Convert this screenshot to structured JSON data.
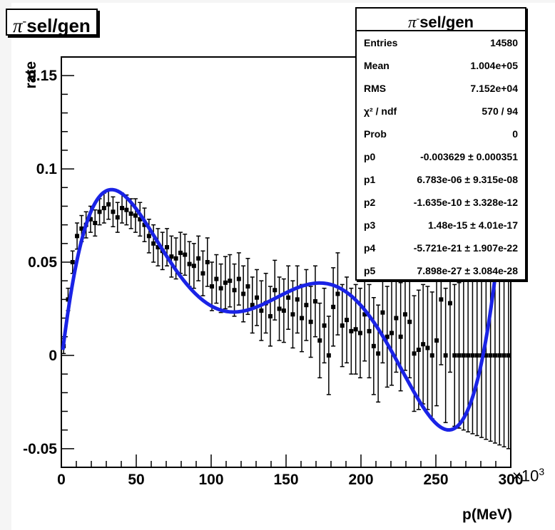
{
  "chart_data": {
    "type": "scatter",
    "title": "π⁻sel/gen",
    "title_parts": {
      "symbol": "π",
      "charge": "-",
      "rest": "sel/gen"
    },
    "xlabel": "p(MeV)",
    "ylabel": "rate",
    "x_exponent_base": "×10",
    "x_exponent_power": "3",
    "xlim": [
      0,
      300
    ],
    "ylim": [
      -0.06,
      0.16
    ],
    "x_ticks": [
      "0",
      "50",
      "100",
      "150",
      "200",
      "250",
      "300"
    ],
    "y_ticks": [
      "-0.05",
      "0",
      "0.05",
      "0.1",
      "0.15"
    ],
    "y_tick_values": [
      -0.05,
      0,
      0.05,
      0.1,
      0.15
    ],
    "x_tick_values": [
      0,
      50,
      100,
      150,
      200,
      250,
      300
    ],
    "grid": false,
    "series": [
      {
        "kind": "data-with-errors",
        "color": "#000000",
        "points": [
          [
            1.5,
            0.005,
            0.004
          ],
          [
            4.5,
            0.03,
            0.006
          ],
          [
            7.5,
            0.05,
            0.006
          ],
          [
            10.5,
            0.064,
            0.007
          ],
          [
            13.5,
            0.068,
            0.007
          ],
          [
            16.5,
            0.07,
            0.007
          ],
          [
            19.5,
            0.073,
            0.007
          ],
          [
            22.5,
            0.071,
            0.007
          ],
          [
            25.5,
            0.077,
            0.007
          ],
          [
            28.5,
            0.079,
            0.008
          ],
          [
            31.5,
            0.081,
            0.008
          ],
          [
            34.5,
            0.077,
            0.008
          ],
          [
            37.5,
            0.074,
            0.008
          ],
          [
            40.5,
            0.079,
            0.008
          ],
          [
            43.5,
            0.078,
            0.008
          ],
          [
            46.5,
            0.076,
            0.008
          ],
          [
            49.5,
            0.075,
            0.009
          ],
          [
            52.5,
            0.073,
            0.009
          ],
          [
            55.5,
            0.07,
            0.009
          ],
          [
            58.5,
            0.064,
            0.009
          ],
          [
            61.5,
            0.06,
            0.01
          ],
          [
            64.5,
            0.058,
            0.01
          ],
          [
            67.5,
            0.056,
            0.01
          ],
          [
            70.5,
            0.058,
            0.01
          ],
          [
            73.5,
            0.053,
            0.011
          ],
          [
            76.5,
            0.052,
            0.011
          ],
          [
            79.5,
            0.055,
            0.011
          ],
          [
            82.5,
            0.054,
            0.011
          ],
          [
            85.5,
            0.049,
            0.012
          ],
          [
            88.5,
            0.048,
            0.012
          ],
          [
            91.5,
            0.052,
            0.012
          ],
          [
            94.5,
            0.044,
            0.012
          ],
          [
            97.5,
            0.05,
            0.013
          ],
          [
            100.5,
            0.037,
            0.013
          ],
          [
            103.5,
            0.041,
            0.013
          ],
          [
            106.5,
            0.036,
            0.013
          ],
          [
            109.5,
            0.039,
            0.014
          ],
          [
            112.5,
            0.04,
            0.014
          ],
          [
            115.5,
            0.035,
            0.014
          ],
          [
            118.5,
            0.041,
            0.014
          ],
          [
            121.5,
            0.033,
            0.015
          ],
          [
            124.5,
            0.037,
            0.015
          ],
          [
            127.5,
            0.027,
            0.015
          ],
          [
            130.5,
            0.031,
            0.015
          ],
          [
            133.5,
            0.024,
            0.016
          ],
          [
            136.5,
            0.028,
            0.016
          ],
          [
            139.5,
            0.021,
            0.016
          ],
          [
            142.5,
            0.035,
            0.016
          ],
          [
            145.5,
            0.025,
            0.017
          ],
          [
            148.5,
            0.024,
            0.017
          ],
          [
            151.5,
            0.031,
            0.017
          ],
          [
            154.5,
            0.022,
            0.018
          ],
          [
            157.5,
            0.03,
            0.018
          ],
          [
            160.5,
            0.02,
            0.018
          ],
          [
            163.5,
            0.027,
            0.019
          ],
          [
            166.5,
            0.018,
            0.019
          ],
          [
            169.5,
            0.029,
            0.019
          ],
          [
            172.5,
            0.008,
            0.02
          ],
          [
            175.5,
            0.016,
            0.02
          ],
          [
            178.5,
            0.0,
            0.021
          ],
          [
            181.5,
            0.026,
            0.021
          ],
          [
            184.5,
            0.033,
            0.022
          ],
          [
            187.5,
            0.016,
            0.022
          ],
          [
            190.5,
            0.019,
            0.023
          ],
          [
            193.5,
            0.013,
            0.023
          ],
          [
            196.5,
            0.014,
            0.024
          ],
          [
            199.5,
            0.012,
            0.024
          ],
          [
            202.5,
            0.022,
            0.025
          ],
          [
            205.5,
            0.013,
            0.025
          ],
          [
            208.5,
            0.005,
            0.026
          ],
          [
            211.5,
            0.001,
            0.026
          ],
          [
            214.5,
            0.023,
            0.027
          ],
          [
            217.5,
            0.01,
            0.027
          ],
          [
            220.5,
            0.012,
            0.028
          ],
          [
            223.5,
            0.02,
            0.029
          ],
          [
            226.5,
            0.01,
            0.029
          ],
          [
            229.5,
            0.022,
            0.03
          ],
          [
            232.5,
            0.018,
            0.03
          ],
          [
            235.5,
            0.001,
            0.031
          ],
          [
            238.5,
            0.003,
            0.032
          ],
          [
            241.5,
            0.006,
            0.032
          ],
          [
            244.5,
            0.004,
            0.033
          ],
          [
            247.5,
            0.0,
            0.034
          ],
          [
            250.5,
            0.008,
            0.035
          ],
          [
            253.5,
            0.03,
            0.035
          ],
          [
            256.5,
            0.0,
            0.036
          ],
          [
            259.5,
            0.028,
            0.037
          ],
          [
            262.5,
            0.0,
            0.038
          ],
          [
            265.5,
            0.0,
            0.039
          ],
          [
            268.5,
            0.0,
            0.04
          ],
          [
            271.5,
            0.0,
            0.041
          ],
          [
            274.5,
            0.0,
            0.042
          ],
          [
            277.5,
            0.0,
            0.043
          ],
          [
            280.5,
            0.0,
            0.044
          ],
          [
            283.5,
            0.0,
            0.045
          ],
          [
            286.5,
            0.0,
            0.046
          ],
          [
            289.5,
            0.0,
            0.047
          ],
          [
            292.5,
            0.0,
            0.048
          ],
          [
            295.5,
            0.0,
            0.049
          ],
          [
            298.5,
            0.0,
            0.05
          ]
        ]
      },
      {
        "kind": "fit-curve",
        "function": "pol5",
        "color": "#1a23e6",
        "params": [
          -0.003629,
          6.783e-06,
          -1.635e-10,
          1.48e-15,
          -5.721e-21,
          7.898e-27
        ]
      }
    ],
    "stats_box": {
      "title_parts": {
        "symbol": "π",
        "charge": "-",
        "rest": "sel/gen"
      },
      "rows": [
        {
          "key": "Entries",
          "value": "14580"
        },
        {
          "key": "Mean",
          "value": "1.004e+05"
        },
        {
          "key": "RMS",
          "value": "7.152e+04"
        },
        {
          "key": "χ² / ndf",
          "value": "570 / 94"
        },
        {
          "key": "Prob",
          "value": "0"
        },
        {
          "key": "p0",
          "value": "-0.003629 ± 0.000351"
        },
        {
          "key": "p1",
          "value": "6.783e-06 ± 9.315e-08"
        },
        {
          "key": "p2",
          "value": "-1.635e-10 ± 3.328e-12"
        },
        {
          "key": "p3",
          "value": "1.48e-15 ± 4.01e-17"
        },
        {
          "key": "p4",
          "value": "-5.721e-21 ± 1.907e-22"
        },
        {
          "key": "p5",
          "value": "7.898e-27 ± 3.084e-28"
        }
      ],
      "placement": "top-right"
    }
  }
}
